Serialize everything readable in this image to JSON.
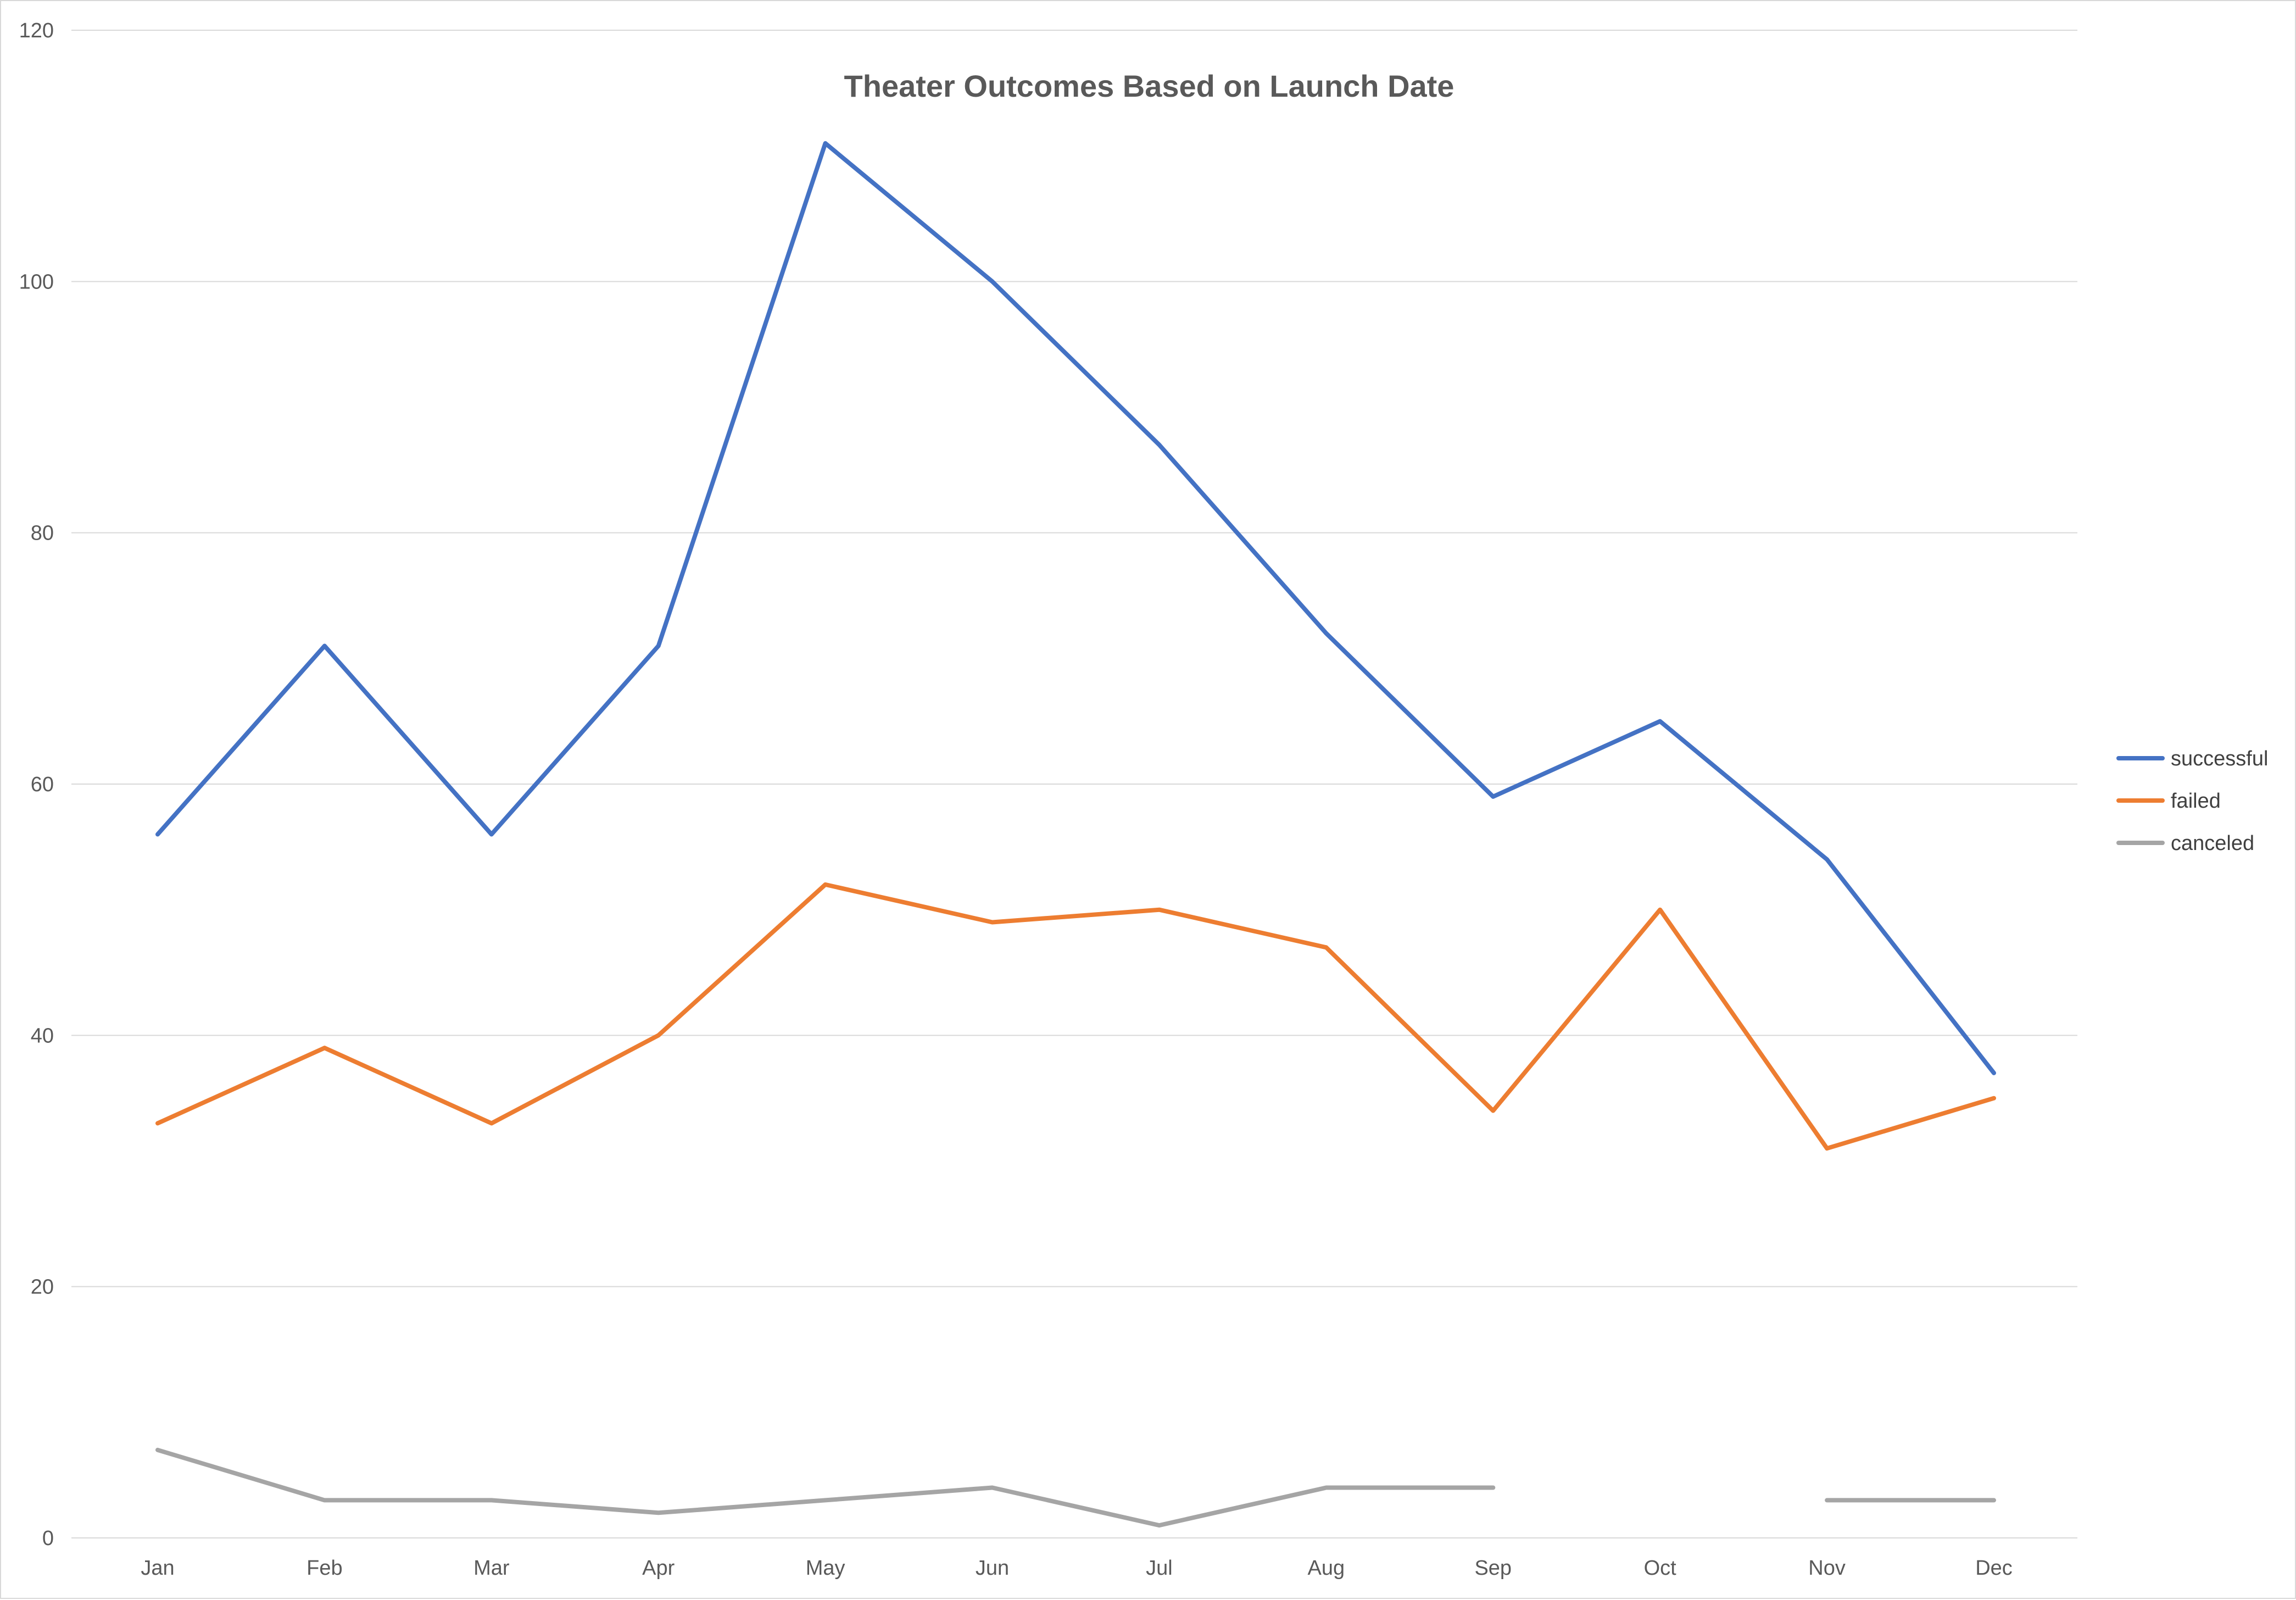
{
  "chart_data": {
    "type": "line",
    "title": "Theater Outcomes Based on Launch Date",
    "xlabel": "",
    "ylabel": "",
    "categories": [
      "Jan",
      "Feb",
      "Mar",
      "Apr",
      "May",
      "Jun",
      "Jul",
      "Aug",
      "Sep",
      "Oct",
      "Nov",
      "Dec"
    ],
    "ylim": [
      0,
      120
    ],
    "yticks": [
      0,
      20,
      40,
      60,
      80,
      100,
      120
    ],
    "grid": true,
    "legend_position": "right",
    "series": [
      {
        "name": "successful",
        "color": "#4472C4",
        "values": [
          56,
          71,
          56,
          71,
          111,
          100,
          87,
          72,
          59,
          65,
          54,
          37
        ]
      },
      {
        "name": "failed",
        "color": "#ED7D31",
        "values": [
          33,
          39,
          33,
          40,
          52,
          49,
          50,
          47,
          34,
          50,
          31,
          35
        ]
      },
      {
        "name": "canceled",
        "color": "#A5A5A5",
        "values": [
          7,
          3,
          3,
          2,
          3,
          4,
          1,
          4,
          4,
          null,
          3,
          3
        ]
      }
    ]
  }
}
